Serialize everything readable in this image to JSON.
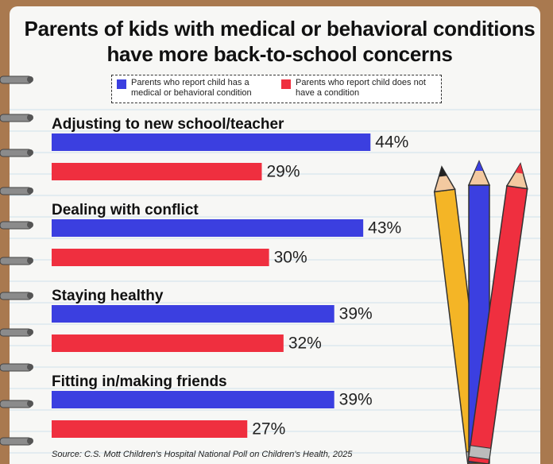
{
  "chart_data": {
    "type": "bar",
    "orientation": "horizontal",
    "title": "Parents of kids with medical or behavioral conditions have more back-to-school concerns",
    "categories": [
      "Adjusting to new school/teacher",
      "Dealing with conflict",
      "Staying healthy",
      "Fitting in/making friends"
    ],
    "series": [
      {
        "name": "Parents who report child has a medical or behavioral condition",
        "color": "#3b3fe0",
        "values": [
          44,
          43,
          39,
          39
        ],
        "value_labels": [
          "44%",
          "43%",
          "39%",
          "39%"
        ]
      },
      {
        "name": "Parents who report child does not have a condition",
        "color": "#ef2f3f",
        "values": [
          29,
          30,
          32,
          27
        ],
        "value_labels": [
          "29%",
          "30%",
          "32%",
          "27%"
        ]
      }
    ],
    "source": "Source: C.S. Mott Children's Hospital National Poll on Children's Health, 2025"
  }
}
